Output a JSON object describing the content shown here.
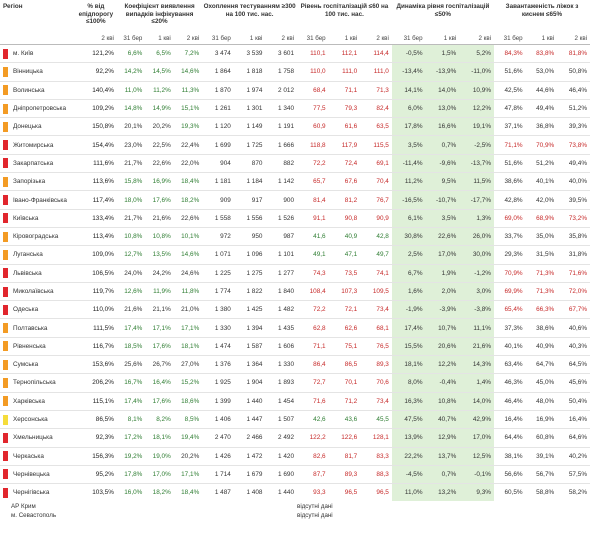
{
  "header": {
    "region": "Регіон",
    "vaccination": "% від епідпорогу ≤100%",
    "detection": "Коефіцієнт виявлення випадків інфікування ≤20%",
    "testing": "Охоплення тестуванням ≥300 на 100 тис. нас.",
    "hosp_level": "Рівень госпіталізацій ≤60 на 100 тис. нас.",
    "hosp_dynamics": "Динаміка рівня госпіталізацій ≤50%",
    "oxygen": "Завантаженість ліжок з киснем ≤65%"
  },
  "columns": {
    "vaccination": [
      "2 кві"
    ],
    "detection": [
      "31 бер",
      "1 кві",
      "2 кві"
    ],
    "testing": [
      "31 бер",
      "1 кві",
      "2 кві"
    ],
    "hosp_level": [
      "31 бер",
      "1 кві",
      "2 кві"
    ],
    "hosp_dynamics": [
      "31 бер",
      "1 кві",
      "2 кві"
    ],
    "oxygen": [
      "31 бер",
      "1 кві",
      "2 кві"
    ]
  },
  "colors": {
    "red": "#e1262d",
    "orange": "#f39b24",
    "yellow": "#f5dc3a",
    "green_cell": "#dff0d8",
    "red_cell": "#f8d7da"
  },
  "rows": [
    {
      "name": "м. Київ",
      "zone": "red",
      "v": "121,2%",
      "d": [
        "6,6%",
        "6,5%",
        "7,2%"
      ],
      "t": [
        "3 474",
        "3 539",
        "3 601"
      ],
      "h": [
        "110,1",
        "112,1",
        "114,4"
      ],
      "dy": [
        "-0,5%",
        "1,5%",
        "5,2%"
      ],
      "o": [
        "84,3%",
        "83,8%",
        "81,8%"
      ]
    },
    {
      "name": "Вінницька",
      "zone": "orange",
      "v": "92,2%",
      "d": [
        "14,2%",
        "14,5%",
        "14,6%"
      ],
      "t": [
        "1 864",
        "1 818",
        "1 758"
      ],
      "h": [
        "110,0",
        "111,0",
        "111,0"
      ],
      "dy": [
        "-13,4%",
        "-13,9%",
        "-11,0%"
      ],
      "o": [
        "51,6%",
        "53,0%",
        "50,8%"
      ]
    },
    {
      "name": "Волинська",
      "zone": "orange",
      "v": "140,4%",
      "d": [
        "11,0%",
        "11,2%",
        "11,3%"
      ],
      "t": [
        "1 870",
        "1 974",
        "2 012"
      ],
      "h": [
        "68,4",
        "71,1",
        "71,3"
      ],
      "dy": [
        "14,1%",
        "14,0%",
        "10,9%"
      ],
      "o": [
        "42,5%",
        "44,6%",
        "46,4%"
      ]
    },
    {
      "name": "Дніпропетровська",
      "zone": "orange",
      "v": "109,2%",
      "d": [
        "14,8%",
        "14,9%",
        "15,1%"
      ],
      "t": [
        "1 261",
        "1 301",
        "1 340"
      ],
      "h": [
        "77,5",
        "79,3",
        "82,4"
      ],
      "dy": [
        "6,0%",
        "13,0%",
        "12,2%"
      ],
      "o": [
        "47,8%",
        "49,4%",
        "51,2%"
      ]
    },
    {
      "name": "Донецька",
      "zone": "orange",
      "v": "150,8%",
      "d": [
        "20,1%",
        "20,2%",
        "19,3%"
      ],
      "t": [
        "1 120",
        "1 149",
        "1 191"
      ],
      "h": [
        "60,9",
        "61,6",
        "63,5"
      ],
      "dy": [
        "17,8%",
        "16,6%",
        "19,1%"
      ],
      "o": [
        "37,1%",
        "36,8%",
        "39,3%"
      ]
    },
    {
      "name": "Житомирська",
      "zone": "red",
      "v": "154,4%",
      "d": [
        "23,0%",
        "22,5%",
        "22,4%"
      ],
      "t": [
        "1 699",
        "1 725",
        "1 666"
      ],
      "h": [
        "118,8",
        "117,9",
        "115,5"
      ],
      "dy": [
        "3,5%",
        "0,7%",
        "-2,5%"
      ],
      "o": [
        "71,1%",
        "70,9%",
        "73,8%"
      ]
    },
    {
      "name": "Закарпатська",
      "zone": "red",
      "v": "111,6%",
      "d": [
        "21,7%",
        "22,6%",
        "22,0%"
      ],
      "t": [
        "904",
        "870",
        "882"
      ],
      "h": [
        "72,2",
        "72,4",
        "69,1"
      ],
      "dy": [
        "-11,4%",
        "-9,6%",
        "-13,7%"
      ],
      "o": [
        "51,6%",
        "51,2%",
        "49,4%"
      ]
    },
    {
      "name": "Запорізька",
      "zone": "orange",
      "v": "113,6%",
      "d": [
        "15,8%",
        "16,9%",
        "18,4%"
      ],
      "t": [
        "1 181",
        "1 184",
        "1 142"
      ],
      "h": [
        "65,7",
        "67,6",
        "70,4"
      ],
      "dy": [
        "11,2%",
        "9,5%",
        "11,5%"
      ],
      "o": [
        "38,6%",
        "40,1%",
        "40,0%"
      ]
    },
    {
      "name": "Івано-Франківська",
      "zone": "red",
      "v": "117,4%",
      "d": [
        "18,0%",
        "17,6%",
        "18,2%"
      ],
      "t": [
        "909",
        "917",
        "900"
      ],
      "h": [
        "81,4",
        "81,2",
        "76,7"
      ],
      "dy": [
        "-16,5%",
        "-10,7%",
        "-17,7%"
      ],
      "o": [
        "42,8%",
        "42,0%",
        "39,5%"
      ]
    },
    {
      "name": "Київська",
      "zone": "red",
      "v": "133,4%",
      "d": [
        "21,7%",
        "21,6%",
        "22,6%"
      ],
      "t": [
        "1 558",
        "1 556",
        "1 526"
      ],
      "h": [
        "91,1",
        "90,8",
        "90,9"
      ],
      "dy": [
        "6,1%",
        "3,5%",
        "1,3%"
      ],
      "o": [
        "69,0%",
        "68,9%",
        "73,2%"
      ]
    },
    {
      "name": "Кіровоградська",
      "zone": "orange",
      "v": "113,4%",
      "d": [
        "10,8%",
        "10,8%",
        "10,1%"
      ],
      "t": [
        "972",
        "950",
        "987"
      ],
      "h": [
        "41,6",
        "40,9",
        "42,8"
      ],
      "dy": [
        "30,8%",
        "22,6%",
        "26,0%"
      ],
      "o": [
        "33,7%",
        "35,0%",
        "35,8%"
      ]
    },
    {
      "name": "Луганська",
      "zone": "orange",
      "v": "109,0%",
      "d": [
        "12,7%",
        "13,5%",
        "14,6%"
      ],
      "t": [
        "1 071",
        "1 096",
        "1 101"
      ],
      "h": [
        "49,1",
        "47,1",
        "49,7"
      ],
      "dy": [
        "2,5%",
        "17,0%",
        "30,0%"
      ],
      "o": [
        "29,3%",
        "31,5%",
        "31,8%"
      ]
    },
    {
      "name": "Львівська",
      "zone": "red",
      "v": "106,5%",
      "d": [
        "24,0%",
        "24,2%",
        "24,6%"
      ],
      "t": [
        "1 225",
        "1 275",
        "1 277"
      ],
      "h": [
        "74,3",
        "73,5",
        "74,1"
      ],
      "dy": [
        "6,7%",
        "1,9%",
        "-1,2%"
      ],
      "o": [
        "70,9%",
        "71,3%",
        "71,6%"
      ]
    },
    {
      "name": "Миколаївська",
      "zone": "red",
      "v": "119,7%",
      "d": [
        "12,6%",
        "11,9%",
        "11,8%"
      ],
      "t": [
        "1 774",
        "1 822",
        "1 840"
      ],
      "h": [
        "108,4",
        "107,3",
        "109,5"
      ],
      "dy": [
        "1,6%",
        "2,0%",
        "3,0%"
      ],
      "o": [
        "69,9%",
        "71,3%",
        "72,0%"
      ]
    },
    {
      "name": "Одеська",
      "zone": "red",
      "v": "110,0%",
      "d": [
        "21,6%",
        "21,1%",
        "21,0%"
      ],
      "t": [
        "1 380",
        "1 425",
        "1 482"
      ],
      "h": [
        "72,2",
        "72,1",
        "73,4"
      ],
      "dy": [
        "-1,9%",
        "-3,9%",
        "-3,8%"
      ],
      "o": [
        "65,4%",
        "66,3%",
        "67,7%"
      ]
    },
    {
      "name": "Полтавська",
      "zone": "orange",
      "v": "111,5%",
      "d": [
        "17,4%",
        "17,1%",
        "17,1%"
      ],
      "t": [
        "1 330",
        "1 394",
        "1 435"
      ],
      "h": [
        "62,8",
        "62,6",
        "68,1"
      ],
      "dy": [
        "17,4%",
        "10,7%",
        "11,1%"
      ],
      "o": [
        "37,3%",
        "38,6%",
        "40,6%"
      ]
    },
    {
      "name": "Рівненська",
      "zone": "orange",
      "v": "116,7%",
      "d": [
        "18,5%",
        "17,6%",
        "18,1%"
      ],
      "t": [
        "1 474",
        "1 587",
        "1 606"
      ],
      "h": [
        "71,1",
        "75,1",
        "76,5"
      ],
      "dy": [
        "15,5%",
        "20,6%",
        "21,6%"
      ],
      "o": [
        "40,1%",
        "40,9%",
        "40,3%"
      ]
    },
    {
      "name": "Сумська",
      "zone": "orange",
      "v": "153,6%",
      "d": [
        "25,6%",
        "26,7%",
        "27,0%"
      ],
      "t": [
        "1 376",
        "1 364",
        "1 330"
      ],
      "h": [
        "86,4",
        "86,5",
        "89,3"
      ],
      "dy": [
        "18,1%",
        "12,2%",
        "14,3%"
      ],
      "o": [
        "63,4%",
        "64,7%",
        "64,5%"
      ]
    },
    {
      "name": "Тернопільська",
      "zone": "orange",
      "v": "206,2%",
      "d": [
        "16,7%",
        "16,4%",
        "15,2%"
      ],
      "t": [
        "1 925",
        "1 904",
        "1 893"
      ],
      "h": [
        "72,7",
        "70,1",
        "70,6"
      ],
      "dy": [
        "8,0%",
        "-0,4%",
        "1,4%"
      ],
      "o": [
        "46,3%",
        "45,0%",
        "45,6%"
      ]
    },
    {
      "name": "Харківська",
      "zone": "orange",
      "v": "115,1%",
      "d": [
        "17,4%",
        "17,6%",
        "18,6%"
      ],
      "t": [
        "1 399",
        "1 440",
        "1 454"
      ],
      "h": [
        "71,6",
        "71,2",
        "73,4"
      ],
      "dy": [
        "16,3%",
        "10,8%",
        "14,0%"
      ],
      "o": [
        "46,4%",
        "48,0%",
        "50,4%"
      ]
    },
    {
      "name": "Херсонська",
      "zone": "yellow",
      "v": "86,5%",
      "d": [
        "8,1%",
        "8,2%",
        "8,5%"
      ],
      "t": [
        "1 406",
        "1 447",
        "1 507"
      ],
      "h": [
        "42,6",
        "43,6",
        "45,5"
      ],
      "dy": [
        "47,5%",
        "40,7%",
        "42,9%"
      ],
      "o": [
        "16,4%",
        "16,9%",
        "16,4%"
      ]
    },
    {
      "name": "Хмельницька",
      "zone": "red",
      "v": "92,3%",
      "d": [
        "17,2%",
        "18,1%",
        "19,4%"
      ],
      "t": [
        "2 470",
        "2 466",
        "2 492"
      ],
      "h": [
        "122,2",
        "122,6",
        "128,1"
      ],
      "dy": [
        "13,9%",
        "12,9%",
        "17,0%"
      ],
      "o": [
        "64,4%",
        "60,8%",
        "64,6%"
      ]
    },
    {
      "name": "Черкаська",
      "zone": "red",
      "v": "156,3%",
      "d": [
        "19,2%",
        "19,0%",
        "20,2%"
      ],
      "t": [
        "1 426",
        "1 472",
        "1 420"
      ],
      "h": [
        "82,6",
        "81,7",
        "83,3"
      ],
      "dy": [
        "22,2%",
        "13,7%",
        "12,5%"
      ],
      "o": [
        "38,1%",
        "39,1%",
        "40,2%"
      ]
    },
    {
      "name": "Чернівецька",
      "zone": "red",
      "v": "95,2%",
      "d": [
        "17,8%",
        "17,0%",
        "17,1%"
      ],
      "t": [
        "1 714",
        "1 679",
        "1 690"
      ],
      "h": [
        "87,7",
        "89,3",
        "88,3"
      ],
      "dy": [
        "-4,5%",
        "0,7%",
        "-0,1%"
      ],
      "o": [
        "56,6%",
        "56,7%",
        "57,5%"
      ]
    },
    {
      "name": "Чернігівська",
      "zone": "red",
      "v": "103,5%",
      "d": [
        "16,0%",
        "18,2%",
        "18,4%"
      ],
      "t": [
        "1 487",
        "1 408",
        "1 440"
      ],
      "h": [
        "93,3",
        "96,5",
        "96,5"
      ],
      "dy": [
        "11,0%",
        "13,2%",
        "9,3%"
      ],
      "o": [
        "60,5%",
        "58,8%",
        "58,2%"
      ]
    }
  ],
  "footer": [
    {
      "name": "АР Крим",
      "note": "відсутні дані"
    },
    {
      "name": "м. Севастополь",
      "note": "відсутні дані"
    }
  ]
}
